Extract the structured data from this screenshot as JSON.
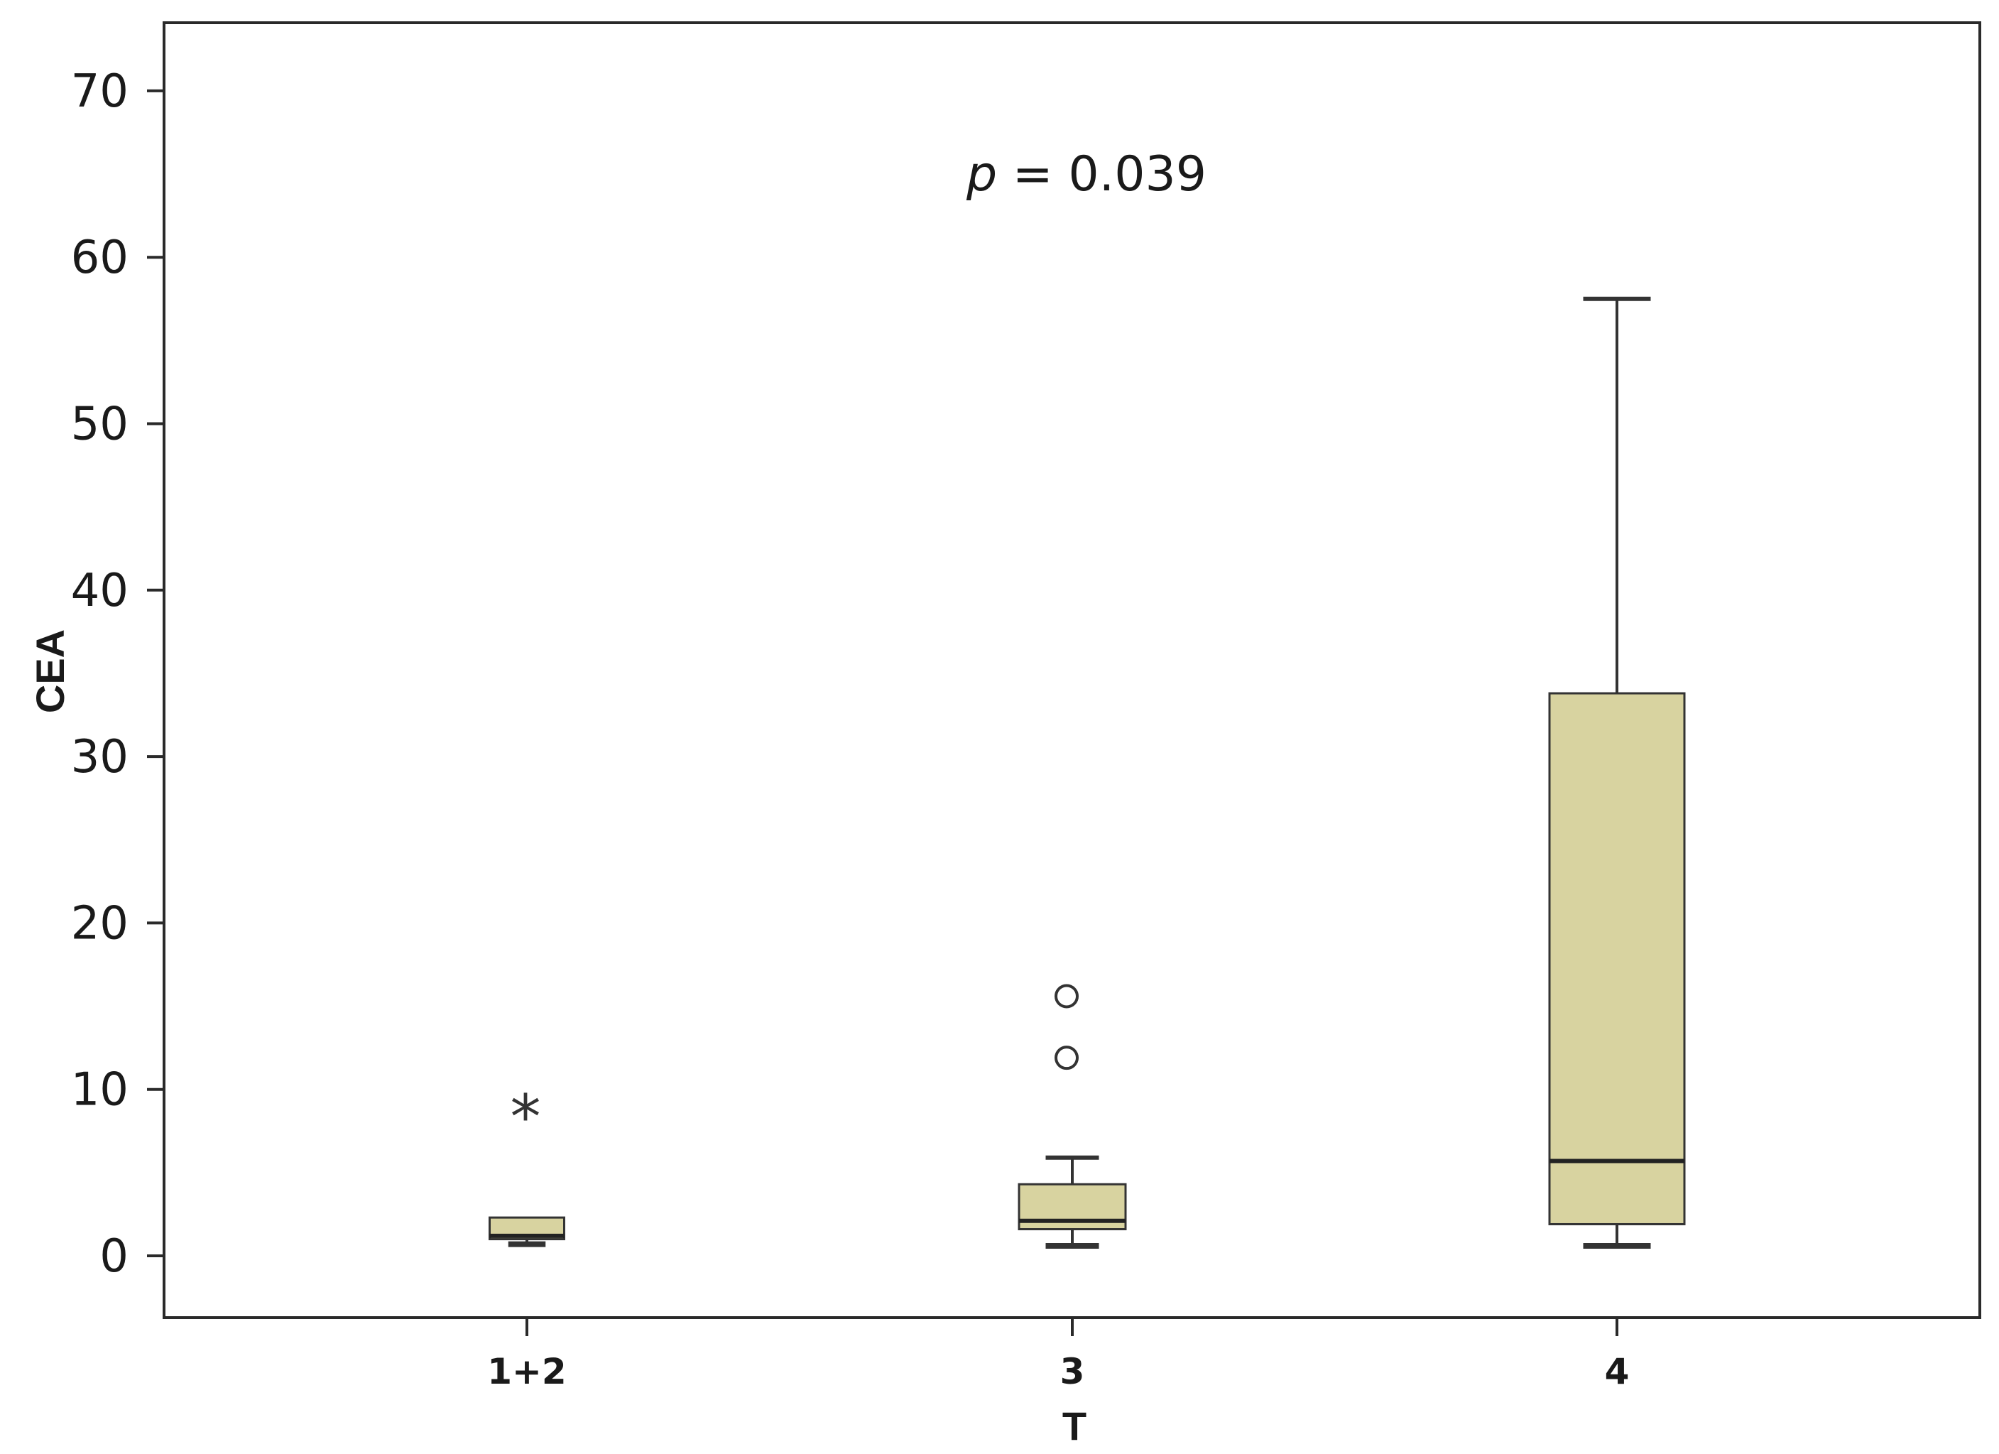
{
  "chart_data": {
    "type": "boxplot",
    "xlabel": "T",
    "ylabel": "CEA",
    "annotation": "p = 0.039",
    "annotation_p": "p",
    "annotation_rest": " = 0.039",
    "ylim": [
      -3.5,
      74.5
    ],
    "yticks": [
      0,
      10,
      20,
      30,
      40,
      50,
      60,
      70
    ],
    "grid": false,
    "box_fill": "#d8d3a0",
    "line_color": "#333333",
    "categories": [
      "1+2",
      "3",
      "4"
    ],
    "boxes": [
      {
        "category": "1+2",
        "whisker_low": 0.7,
        "q1": 1.0,
        "median": 1.2,
        "q3": 2.3,
        "whisker_high": 2.3,
        "outliers": [],
        "extremes": [
          8.7
        ]
      },
      {
        "category": "3",
        "whisker_low": 0.6,
        "q1": 1.6,
        "median": 2.1,
        "q3": 4.3,
        "whisker_high": 5.9,
        "outliers": [
          11.9,
          15.6
        ],
        "extremes": []
      },
      {
        "category": "4",
        "whisker_low": 0.6,
        "q1": 1.9,
        "median": 5.7,
        "q3": 33.8,
        "whisker_high": 57.5,
        "outliers": [],
        "extremes": []
      }
    ]
  }
}
